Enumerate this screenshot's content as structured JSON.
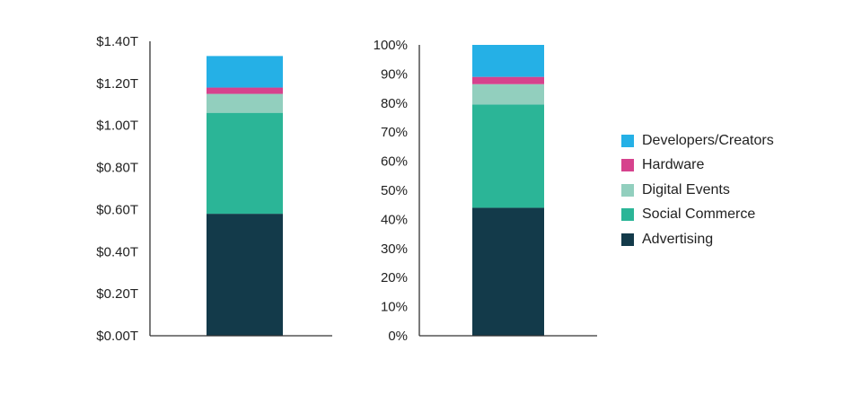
{
  "chart_data": [
    {
      "type": "bar",
      "stacked": true,
      "categories": [
        ""
      ],
      "series": [
        {
          "name": "Advertising",
          "values": [
            0.58
          ],
          "color": "#133a4a"
        },
        {
          "name": "Social Commerce",
          "values": [
            0.48
          ],
          "color": "#2bb597"
        },
        {
          "name": "Digital Events",
          "values": [
            0.09
          ],
          "color": "#92cfbe"
        },
        {
          "name": "Hardware",
          "values": [
            0.03
          ],
          "color": "#d6428d"
        },
        {
          "name": "Developers/Creators",
          "values": [
            0.15
          ],
          "color": "#25b0e6"
        }
      ],
      "ylim": [
        0,
        1.4
      ],
      "yticks": [
        0.0,
        0.2,
        0.4,
        0.6,
        0.8,
        1.0,
        1.2,
        1.4
      ],
      "ytick_labels": [
        "$0.00T",
        "$0.20T",
        "$0.40T",
        "$0.60T",
        "$0.80T",
        "$1.00T",
        "$1.20T",
        "$1.40T"
      ],
      "grid": false
    },
    {
      "type": "bar",
      "stacked": true,
      "categories": [
        ""
      ],
      "series": [
        {
          "name": "Advertising",
          "values": [
            44
          ],
          "color": "#133a4a"
        },
        {
          "name": "Social Commerce",
          "values": [
            35.5
          ],
          "color": "#2bb597"
        },
        {
          "name": "Digital Events",
          "values": [
            7
          ],
          "color": "#92cfbe"
        },
        {
          "name": "Hardware",
          "values": [
            2.5
          ],
          "color": "#d6428d"
        },
        {
          "name": "Developers/Creators",
          "values": [
            11
          ],
          "color": "#25b0e6"
        }
      ],
      "ylim": [
        0,
        100
      ],
      "yticks": [
        0,
        10,
        20,
        30,
        40,
        50,
        60,
        70,
        80,
        90,
        100
      ],
      "ytick_labels": [
        "0%",
        "10%",
        "20%",
        "30%",
        "40%",
        "50%",
        "60%",
        "70%",
        "80%",
        "90%",
        "100%"
      ],
      "grid": false
    }
  ],
  "legend": {
    "placement": "right",
    "items": [
      {
        "label": "Developers/Creators",
        "color": "#25b0e6"
      },
      {
        "label": "Hardware",
        "color": "#d6428d"
      },
      {
        "label": "Digital Events",
        "color": "#92cfbe"
      },
      {
        "label": "Social Commerce",
        "color": "#2bb597"
      },
      {
        "label": "Advertising",
        "color": "#133a4a"
      }
    ]
  }
}
